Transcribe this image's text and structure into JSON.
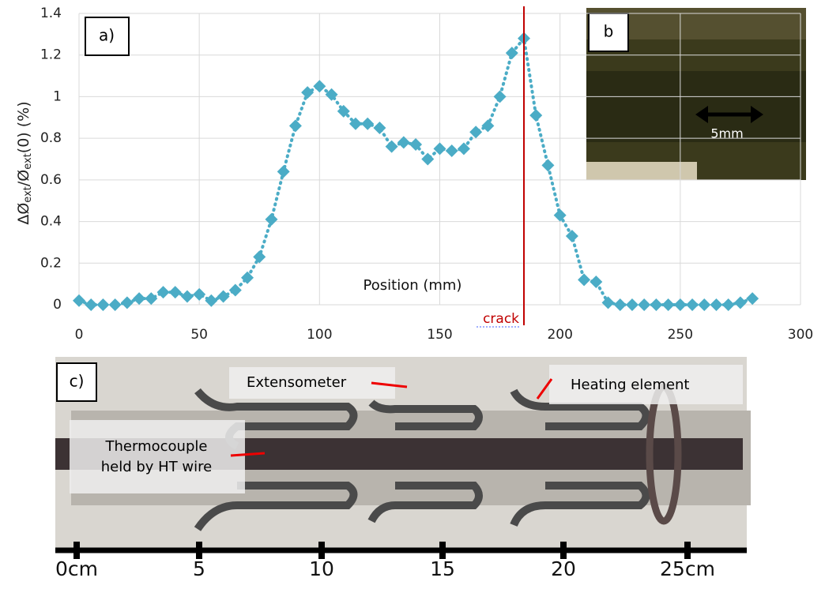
{
  "chart_data": {
    "type": "line",
    "panel_label": "a)",
    "x_label": "Position (mm)",
    "y_label": [
      "ΔØ",
      "ext",
      "/Ø",
      "ext",
      "(0) (%)"
    ],
    "x": [
      0,
      5,
      10,
      15,
      20,
      25,
      30,
      35,
      40,
      45,
      50,
      55,
      60,
      65,
      70,
      75,
      80,
      85,
      90,
      95,
      100,
      105,
      110,
      115,
      120,
      125,
      130,
      135,
      140,
      145,
      150,
      155,
      160,
      165,
      170,
      175,
      180,
      185,
      190,
      195,
      200,
      205,
      210,
      215,
      220,
      225,
      230,
      235,
      240,
      245,
      250,
      255,
      260,
      265,
      270,
      275,
      280
    ],
    "series": [
      {
        "color": "#4bacc6",
        "values": [
          0.02,
          0,
          0,
          0,
          0.01,
          0.03,
          0.03,
          0.06,
          0.06,
          0.04,
          0.05,
          0.02,
          0.04,
          0.07,
          0.13,
          0.23,
          0.41,
          0.64,
          0.86,
          1.02,
          1.05,
          1.01,
          0.93,
          0.87,
          0.87,
          0.85,
          0.76,
          0.78,
          0.77,
          0.7,
          0.75,
          0.74,
          0.75,
          0.83,
          0.86,
          1.0,
          1.21,
          1.28,
          0.91,
          0.67,
          0.43,
          0.33,
          0.12,
          0.11,
          0.01,
          0,
          0,
          0,
          0,
          0,
          0,
          0,
          0,
          0,
          0,
          0.01,
          0.03
        ]
      }
    ],
    "xlim": [
      0,
      300
    ],
    "xticks": [
      0,
      50,
      100,
      150,
      200,
      250,
      300
    ],
    "ylim": [
      0,
      1.4
    ],
    "yticks": [
      0,
      0.2,
      0.4,
      0.6,
      0.8,
      1,
      1.2,
      1.4
    ],
    "grid": true,
    "annotations": [
      {
        "text": "crack",
        "x": 185,
        "color": "#c00000"
      }
    ]
  },
  "photo_b": {
    "label": "b",
    "scale_text": "5mm"
  },
  "photo_c": {
    "label": "c)",
    "callouts": [
      "Extensometer",
      "Heating element",
      "Thermocouple held by HT wire"
    ],
    "ruler": [
      "0cm",
      "5",
      "10",
      "15",
      "20",
      "25cm"
    ]
  }
}
